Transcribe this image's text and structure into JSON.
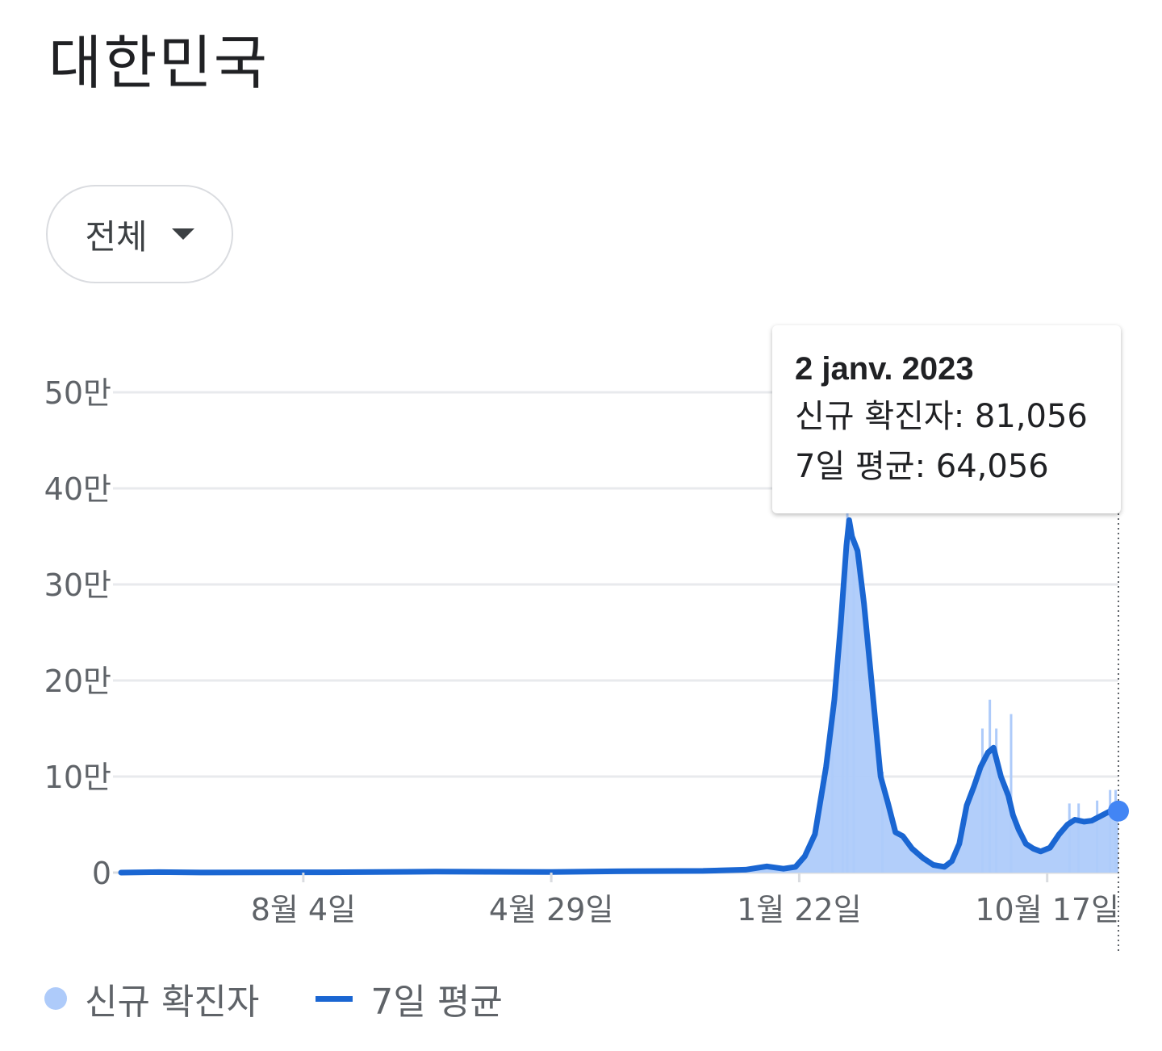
{
  "title": "대한민국",
  "filter": {
    "label": "전체",
    "icon": "caret-down-icon"
  },
  "tooltip": {
    "date": "2 janv. 2023",
    "new_cases_row": "신규 확진자: 81,056",
    "avg_row": "7일 평균: 64,056"
  },
  "legend": {
    "new_cases": "신규 확진자",
    "avg": "7일 평균"
  },
  "colors": {
    "bars": "#aecbfa",
    "line": "#1a66d2",
    "marker": "#4285f4",
    "grid": "#e8eaed",
    "axis_text": "#5f6368"
  },
  "chart_data": {
    "type": "area",
    "y_ticks": [
      {
        "value": 0,
        "label": "0"
      },
      {
        "value": 100000,
        "label": "10만"
      },
      {
        "value": 200000,
        "label": "20만"
      },
      {
        "value": 300000,
        "label": "30만"
      },
      {
        "value": 400000,
        "label": "40만"
      },
      {
        "value": 500000,
        "label": "50만"
      }
    ],
    "ylim": [
      0,
      500000
    ],
    "x_ticks": [
      {
        "date": "2020-08-04",
        "label": "8월 4일"
      },
      {
        "date": "2021-04-29",
        "label": "4월 29일"
      },
      {
        "date": "2022-01-22",
        "label": "1월 22일"
      },
      {
        "date": "2022-10-17",
        "label": "10월 17일"
      }
    ],
    "xlim": [
      "2020-01-20",
      "2023-01-02"
    ],
    "grid": true,
    "series": [
      {
        "name": "7일 평균",
        "points": [
          [
            "2020-01-20",
            0
          ],
          [
            "2020-03-01",
            500
          ],
          [
            "2020-04-15",
            100
          ],
          [
            "2020-08-30",
            300
          ],
          [
            "2020-12-25",
            1000
          ],
          [
            "2021-04-29",
            700
          ],
          [
            "2021-07-25",
            1500
          ],
          [
            "2021-10-10",
            1800
          ],
          [
            "2021-11-25",
            3000
          ],
          [
            "2021-12-18",
            6500
          ],
          [
            "2022-01-05",
            4000
          ],
          [
            "2022-01-18",
            6000
          ],
          [
            "2022-01-28",
            17000
          ],
          [
            "2022-02-08",
            40000
          ],
          [
            "2022-02-20",
            110000
          ],
          [
            "2022-03-01",
            180000
          ],
          [
            "2022-03-08",
            260000
          ],
          [
            "2022-03-14",
            340000
          ],
          [
            "2022-03-17",
            367000
          ],
          [
            "2022-03-20",
            350000
          ],
          [
            "2022-03-26",
            335000
          ],
          [
            "2022-04-02",
            280000
          ],
          [
            "2022-04-10",
            200000
          ],
          [
            "2022-04-20",
            100000
          ],
          [
            "2022-04-28",
            72000
          ],
          [
            "2022-05-06",
            42000
          ],
          [
            "2022-05-14",
            38000
          ],
          [
            "2022-05-24",
            25000
          ],
          [
            "2022-06-05",
            15000
          ],
          [
            "2022-06-16",
            8000
          ],
          [
            "2022-06-28",
            6000
          ],
          [
            "2022-07-06",
            12000
          ],
          [
            "2022-07-14",
            30000
          ],
          [
            "2022-07-22",
            70000
          ],
          [
            "2022-07-30",
            90000
          ],
          [
            "2022-08-06",
            110000
          ],
          [
            "2022-08-14",
            125000
          ],
          [
            "2022-08-20",
            130000
          ],
          [
            "2022-08-28",
            100000
          ],
          [
            "2022-09-05",
            80000
          ],
          [
            "2022-09-10",
            60000
          ],
          [
            "2022-09-16",
            45000
          ],
          [
            "2022-09-24",
            30000
          ],
          [
            "2022-10-02",
            25000
          ],
          [
            "2022-10-10",
            22000
          ],
          [
            "2022-10-20",
            26000
          ],
          [
            "2022-10-30",
            40000
          ],
          [
            "2022-11-08",
            50000
          ],
          [
            "2022-11-16",
            55000
          ],
          [
            "2022-11-26",
            53000
          ],
          [
            "2022-12-04",
            54000
          ],
          [
            "2022-12-12",
            58000
          ],
          [
            "2022-12-20",
            62000
          ],
          [
            "2022-12-28",
            66000
          ],
          [
            "2023-01-02",
            64056
          ]
        ]
      }
    ]
  }
}
